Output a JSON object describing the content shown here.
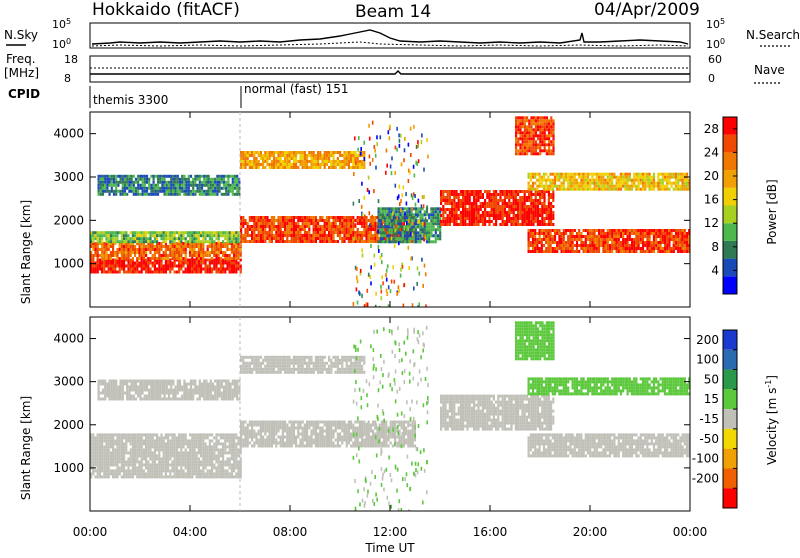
{
  "header": {
    "radar": "Hokkaido (fitACF)",
    "beam": "Beam 14",
    "date": "04/Apr/2009"
  },
  "side_labels": {
    "nsky": "N.Sky",
    "nsearch": "N.Search",
    "freq": "Freq.",
    "freq_unit": "[MHz]",
    "nave": "Nave",
    "cpid": "CPID"
  },
  "top_ticks": {
    "noise_left": [
      "10^5",
      "10^0"
    ],
    "noise_right": [
      "10^5",
      "10^0"
    ],
    "freq_left": [
      "18",
      "8"
    ],
    "nave_right": [
      "60",
      "0"
    ]
  },
  "cpid_blocks": [
    {
      "label": "themis 3300",
      "start_hour": 0,
      "end_hour": 6
    },
    {
      "label": "normal (fast) 151",
      "start_hour": 6,
      "end_hour": 24
    }
  ],
  "chart_data": [
    {
      "type": "heatmap",
      "ylabel": "Slant Range [km]",
      "xlabel": "Time UT",
      "x_ticks": [
        "00:00",
        "04:00",
        "08:00",
        "12:00",
        "16:00",
        "20:00",
        "00:00"
      ],
      "x_hours": [
        0,
        4,
        8,
        12,
        16,
        20,
        24
      ],
      "y_ticks": [
        1000,
        2000,
        3000,
        4000
      ],
      "ylim": [
        0,
        4500
      ],
      "colorbar": {
        "label": "Power [dB]",
        "ticks": [
          4,
          8,
          12,
          16,
          20,
          24,
          28
        ],
        "range": [
          0,
          30
        ],
        "colors": [
          "#0000ff",
          "#1a4ab8",
          "#2f7a54",
          "#4db84d",
          "#a8d020",
          "#f0d000",
          "#f0a000",
          "#f07800",
          "#f04800",
          "#ff0000"
        ]
      },
      "bands": [
        {
          "t0": 0,
          "t1": 6,
          "r0": 820,
          "r1": 1120,
          "value": 28
        },
        {
          "t0": 0,
          "t1": 6,
          "r0": 1120,
          "r1": 1500,
          "value": 24
        },
        {
          "t0": 0,
          "t1": 6,
          "r0": 1500,
          "r1": 1750,
          "value": 12
        },
        {
          "t0": 0.3,
          "t1": 6,
          "r0": 2600,
          "r1": 3050,
          "value": 7
        },
        {
          "t0": 6,
          "t1": 13,
          "r0": 1500,
          "r1": 2100,
          "value": 26
        },
        {
          "t0": 6,
          "t1": 11,
          "r0": 3250,
          "r1": 3600,
          "value": 20
        },
        {
          "t0": 11.5,
          "t1": 14,
          "r0": 1500,
          "r1": 2300,
          "value": 8
        },
        {
          "t0": 14,
          "t1": 18.5,
          "r0": 1900,
          "r1": 2700,
          "value": 28
        },
        {
          "t0": 17.5,
          "t1": 24,
          "r0": 1300,
          "r1": 1800,
          "value": 26
        },
        {
          "t0": 17.5,
          "t1": 24,
          "r0": 2700,
          "r1": 3100,
          "value": 18
        },
        {
          "t0": 17,
          "t1": 18.5,
          "r0": 3500,
          "r1": 4400,
          "value": 26
        }
      ]
    },
    {
      "type": "heatmap",
      "ylabel": "Slant Range [km]",
      "xlabel": "Time UT",
      "x_ticks": [
        "00:00",
        "04:00",
        "08:00",
        "12:00",
        "16:00",
        "20:00",
        "00:00"
      ],
      "x_hours": [
        0,
        4,
        8,
        12,
        16,
        20,
        24
      ],
      "y_ticks": [
        1000,
        2000,
        3000,
        4000
      ],
      "ylim": [
        0,
        4500
      ],
      "colorbar": {
        "label": "Velocity [m s",
        "label_sup": "-1",
        "label_end": "]",
        "ticks": [
          200,
          100,
          50,
          15,
          -15,
          -50,
          -100,
          -200
        ],
        "colors": [
          "#1a3ad0",
          "#2a6ab0",
          "#2a9a4a",
          "#5cc83c",
          "#c0c0b8",
          "#f0d800",
          "#f0a000",
          "#f06000",
          "#ff0000"
        ]
      },
      "bands": [
        {
          "t0": 0,
          "t1": 6,
          "r0": 820,
          "r1": 1800,
          "value": 0
        },
        {
          "t0": 0.3,
          "t1": 6,
          "r0": 2600,
          "r1": 3050,
          "value": 0
        },
        {
          "t0": 6,
          "t1": 13,
          "r0": 1500,
          "r1": 2100,
          "value": 0
        },
        {
          "t0": 6,
          "t1": 11,
          "r0": 3250,
          "r1": 3600,
          "value": 0
        },
        {
          "t0": 14,
          "t1": 18.5,
          "r0": 1900,
          "r1": 2700,
          "value": 0
        },
        {
          "t0": 17.5,
          "t1": 24,
          "r0": 1300,
          "r1": 1800,
          "value": 0
        },
        {
          "t0": 17.5,
          "t1": 24,
          "r0": 2700,
          "r1": 3100,
          "value": 40
        },
        {
          "t0": 17,
          "t1": 18.5,
          "r0": 3500,
          "r1": 4400,
          "value": 40
        }
      ]
    }
  ]
}
